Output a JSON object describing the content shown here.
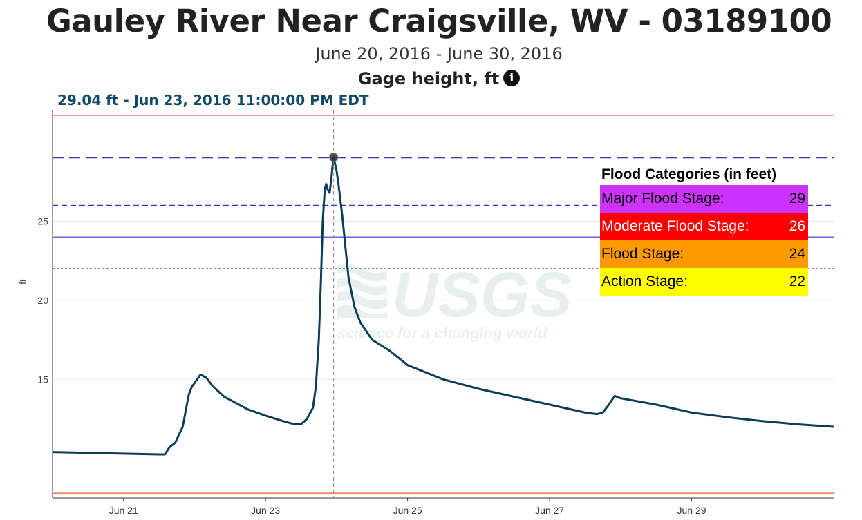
{
  "header": {
    "title": "Gauley River Near Craigsville, WV - 03189100",
    "date_range": "June 20, 2016 - June 30, 2016",
    "parameter": "Gage height, ft",
    "info_icon_glyph": "i",
    "readout": "29.04 ft - Jun 23, 2016 11:00:00 PM EDT"
  },
  "legend": {
    "title": "Flood Categories (in feet)",
    "items": [
      {
        "label": "Major Flood Stage:",
        "value": "29",
        "color": "#cc33ff",
        "text_color": "#000000"
      },
      {
        "label": "Moderate Flood Stage:",
        "value": "26",
        "color": "#ff0000",
        "text_color": "#ffffff"
      },
      {
        "label": "Flood Stage:",
        "value": "24",
        "color": "#ff9900",
        "text_color": "#000000"
      },
      {
        "label": "Action Stage:",
        "value": "22",
        "color": "#ffff00",
        "text_color": "#000000"
      }
    ]
  },
  "watermark": {
    "logo": "USGS",
    "tagline": "science for a changing world"
  },
  "chart_data": {
    "type": "line",
    "title": "Gauley River Near Craigsville, WV - 03189100",
    "subtitle": "June 20, 2016 - June 30, 2016",
    "ylabel": "ft",
    "xlabel": "",
    "x_range": [
      "2016-06-20",
      "2016-07-01"
    ],
    "ylim": [
      7.5,
      32.0
    ],
    "yticks": [
      15,
      20,
      25
    ],
    "xticks": [
      {
        "date": "2016-06-21",
        "label": "Jun 21"
      },
      {
        "date": "2016-06-23",
        "label": "Jun 23"
      },
      {
        "date": "2016-06-25",
        "label": "Jun 25"
      },
      {
        "date": "2016-06-27",
        "label": "Jun 27"
      },
      {
        "date": "2016-06-29",
        "label": "Jun 29"
      }
    ],
    "grid": "horizontal",
    "colors": {
      "series": "#0d3d56",
      "major": "#22229e",
      "flood": "#3333dd",
      "limit": "#e8734f",
      "grid": "#e6e6e6",
      "cursor": "#888888"
    },
    "flood_lines": [
      {
        "name": "Major Flood Stage",
        "value": 29,
        "style": "long-dash"
      },
      {
        "name": "Moderate Flood Stage",
        "value": 26,
        "style": "dash"
      },
      {
        "name": "Flood Stage",
        "value": 24,
        "style": "solid"
      },
      {
        "name": "Action Stage",
        "value": 22,
        "style": "dot"
      }
    ],
    "limit_lines": [
      31.7,
      7.8
    ],
    "highlight": {
      "x": "2016-06-23T23:00",
      "y": 29.04
    },
    "series": [
      {
        "name": "",
        "points": [
          [
            "2016-06-20T00:00",
            10.4
          ],
          [
            "2016-06-20T12:00",
            10.35
          ],
          [
            "2016-06-21T00:00",
            10.3
          ],
          [
            "2016-06-21T12:00",
            10.25
          ],
          [
            "2016-06-21T14:00",
            10.25
          ],
          [
            "2016-06-21T15:30",
            10.7
          ],
          [
            "2016-06-21T17:30",
            11.0
          ],
          [
            "2016-06-21T20:00",
            12.0
          ],
          [
            "2016-06-21T21:00",
            13.0
          ],
          [
            "2016-06-21T22:00",
            14.0
          ],
          [
            "2016-06-21T23:00",
            14.5
          ],
          [
            "2016-06-22T02:00",
            15.3
          ],
          [
            "2016-06-22T04:00",
            15.1
          ],
          [
            "2016-06-22T06:00",
            14.6
          ],
          [
            "2016-06-22T10:00",
            13.9
          ],
          [
            "2016-06-22T14:00",
            13.5
          ],
          [
            "2016-06-22T18:00",
            13.1
          ],
          [
            "2016-06-23T00:00",
            12.7
          ],
          [
            "2016-06-23T06:00",
            12.35
          ],
          [
            "2016-06-23T09:00",
            12.2
          ],
          [
            "2016-06-23T12:00",
            12.15
          ],
          [
            "2016-06-23T14:00",
            12.5
          ],
          [
            "2016-06-23T16:00",
            13.2
          ],
          [
            "2016-06-23T17:00",
            14.5
          ],
          [
            "2016-06-23T18:00",
            17.5
          ],
          [
            "2016-06-23T18:40",
            21.0
          ],
          [
            "2016-06-23T19:20",
            25.0
          ],
          [
            "2016-06-23T20:00",
            27.0
          ],
          [
            "2016-06-23T20:30",
            27.35
          ],
          [
            "2016-06-23T21:00",
            27.0
          ],
          [
            "2016-06-23T21:40",
            26.8
          ],
          [
            "2016-06-23T22:10",
            27.6
          ],
          [
            "2016-06-23T22:40",
            28.5
          ],
          [
            "2016-06-23T23:00",
            29.04
          ],
          [
            "2016-06-24T00:00",
            28.2
          ],
          [
            "2016-06-24T01:00",
            26.8
          ],
          [
            "2016-06-24T02:00",
            25.2
          ],
          [
            "2016-06-24T03:00",
            23.3
          ],
          [
            "2016-06-24T04:00",
            21.5
          ],
          [
            "2016-06-24T06:00",
            19.6
          ],
          [
            "2016-06-24T08:00",
            18.6
          ],
          [
            "2016-06-24T12:00",
            17.5
          ],
          [
            "2016-06-24T18:00",
            16.8
          ],
          [
            "2016-06-25T00:00",
            15.9
          ],
          [
            "2016-06-25T12:00",
            15.0
          ],
          [
            "2016-06-26T00:00",
            14.4
          ],
          [
            "2016-06-26T12:00",
            13.9
          ],
          [
            "2016-06-27T00:00",
            13.4
          ],
          [
            "2016-06-27T12:00",
            12.9
          ],
          [
            "2016-06-27T16:00",
            12.8
          ],
          [
            "2016-06-27T18:00",
            12.9
          ],
          [
            "2016-06-27T20:00",
            13.4
          ],
          [
            "2016-06-27T22:00",
            13.95
          ],
          [
            "2016-06-28T00:00",
            13.8
          ],
          [
            "2016-06-28T12:00",
            13.4
          ],
          [
            "2016-06-29T00:00",
            12.9
          ],
          [
            "2016-06-29T12:00",
            12.6
          ],
          [
            "2016-06-30T00:00",
            12.35
          ],
          [
            "2016-06-30T12:00",
            12.15
          ],
          [
            "2016-07-01T00:00",
            12.0
          ]
        ]
      }
    ]
  }
}
